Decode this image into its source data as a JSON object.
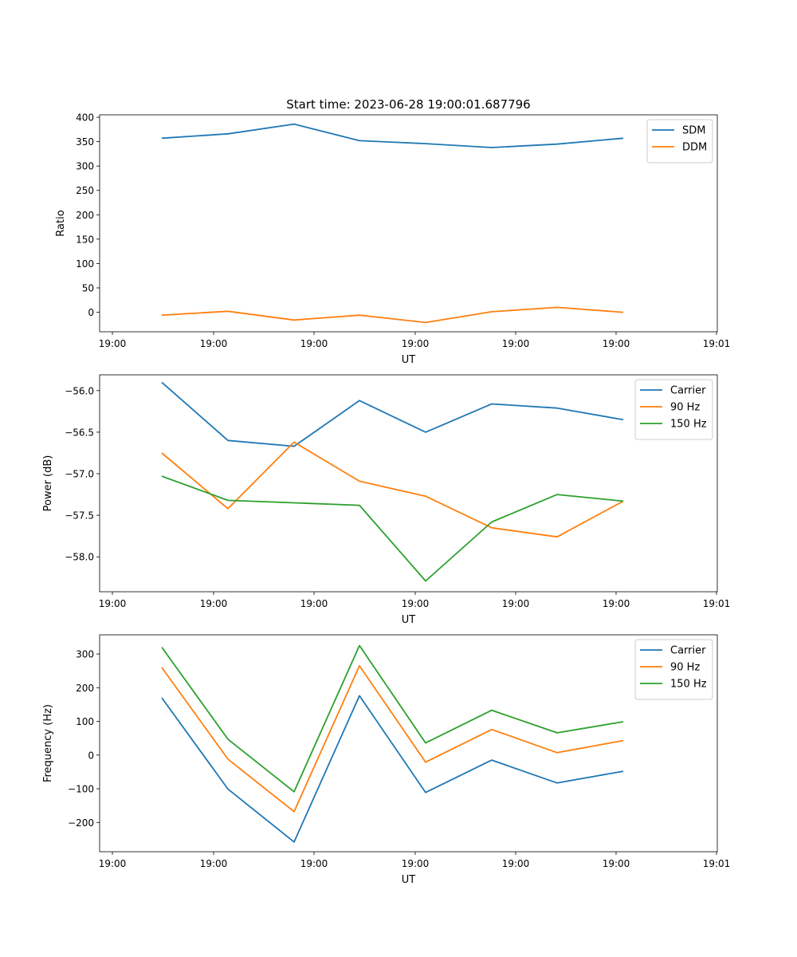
{
  "title": "Start time: 2023-06-28 19:00:01.687796",
  "colors": {
    "blue": "#1f77b4",
    "orange": "#ff7f0e",
    "green": "#2ca02c"
  },
  "chart_data": [
    {
      "type": "line",
      "xlabel": "UT",
      "ylabel": "Ratio",
      "xtick_labels": [
        "19:00",
        "19:00",
        "19:00",
        "19:00",
        "19:00",
        "19:00",
        "19:01"
      ],
      "ylim": [
        -40,
        405
      ],
      "yticks": [
        0,
        50,
        100,
        150,
        200,
        250,
        300,
        350,
        400
      ],
      "legend": "top-right",
      "series": [
        {
          "name": "SDM",
          "color": "#1f77b4",
          "values": [
            357,
            366,
            386,
            352,
            346,
            338,
            345,
            357
          ]
        },
        {
          "name": "DDM",
          "color": "#ff7f0e",
          "values": [
            -6,
            2,
            -16,
            -6,
            -21,
            1,
            10,
            0
          ]
        }
      ]
    },
    {
      "type": "line",
      "xlabel": "UT",
      "ylabel": "Power (dB)",
      "xtick_labels": [
        "19:00",
        "19:00",
        "19:00",
        "19:00",
        "19:00",
        "19:00",
        "19:01"
      ],
      "ylim": [
        -58.42,
        -55.81
      ],
      "yticks": [
        -58.0,
        -57.5,
        -57.0,
        -56.5,
        -56.0
      ],
      "ytick_labels": [
        "−58.0",
        "−57.5",
        "−57.0",
        "−56.5",
        "−56.0"
      ],
      "legend": "top-right",
      "series": [
        {
          "name": "Carrier",
          "color": "#1f77b4",
          "values": [
            -55.9,
            -56.6,
            -56.67,
            -56.12,
            -56.5,
            -56.16,
            -56.21,
            -56.35
          ]
        },
        {
          "name": "90 Hz",
          "color": "#ff7f0e",
          "values": [
            -56.75,
            -57.42,
            -56.62,
            -57.09,
            -57.27,
            -57.65,
            -57.76,
            -57.33
          ]
        },
        {
          "name": "150 Hz",
          "color": "#2ca02c",
          "values": [
            -57.03,
            -57.32,
            -57.35,
            -57.38,
            -58.29,
            -57.58,
            -57.25,
            -57.33
          ]
        }
      ]
    },
    {
      "type": "line",
      "xlabel": "UT",
      "ylabel": "Frequency (Hz)",
      "xtick_labels": [
        "19:00",
        "19:00",
        "19:00",
        "19:00",
        "19:00",
        "19:00",
        "19:01"
      ],
      "ylim": [
        -287,
        357
      ],
      "yticks": [
        -200,
        -100,
        0,
        100,
        200,
        300
      ],
      "ytick_labels": [
        "−200",
        "−100",
        "0",
        "100",
        "200",
        "300"
      ],
      "legend": "top-right",
      "series": [
        {
          "name": "Carrier",
          "color": "#1f77b4",
          "values": [
            170,
            -101,
            -258,
            176,
            -111,
            -15,
            -83,
            -48
          ]
        },
        {
          "name": "90 Hz",
          "color": "#ff7f0e",
          "values": [
            260,
            -12,
            -168,
            265,
            -21,
            76,
            7,
            43
          ]
        },
        {
          "name": "150 Hz",
          "color": "#2ca02c",
          "values": [
            320,
            47,
            -109,
            325,
            36,
            133,
            66,
            99
          ]
        }
      ]
    }
  ]
}
